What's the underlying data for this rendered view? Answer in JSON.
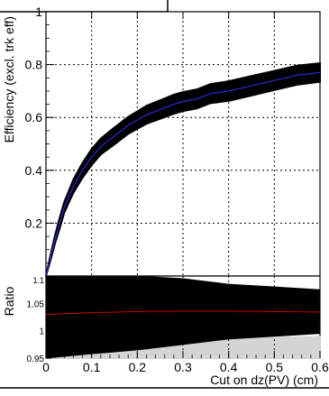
{
  "chart_data": [
    {
      "type": "line",
      "panel": "main",
      "title": "",
      "xlabel": "",
      "ylabel": "Efficiency (excl. trk eff)",
      "xlim": [
        0,
        0.6
      ],
      "ylim": [
        0,
        1.0
      ],
      "xticks": [
        "0",
        "0.1",
        "0.2",
        "0.3",
        "0.4",
        "0.5",
        "0.6"
      ],
      "yticks": [
        "0.2",
        "0.4",
        "0.6",
        "0.8",
        "1"
      ],
      "grid": true,
      "series": [
        {
          "color": "#2a2ad6",
          "band_color": "#000000",
          "x": [
            0,
            0.01,
            0.02,
            0.03,
            0.04,
            0.05,
            0.06,
            0.08,
            0.1,
            0.12,
            0.15,
            0.18,
            0.2,
            0.22,
            0.25,
            0.28,
            0.3,
            0.33,
            0.36,
            0.4,
            0.45,
            0.5,
            0.55,
            0.6
          ],
          "y": [
            0.0,
            0.07,
            0.14,
            0.2,
            0.26,
            0.3,
            0.34,
            0.4,
            0.45,
            0.49,
            0.53,
            0.57,
            0.59,
            0.61,
            0.63,
            0.65,
            0.66,
            0.67,
            0.69,
            0.7,
            0.72,
            0.74,
            0.76,
            0.77
          ],
          "band_half_width": [
            0.0,
            0.01,
            0.015,
            0.02,
            0.02,
            0.022,
            0.025,
            0.028,
            0.03,
            0.03,
            0.032,
            0.032,
            0.033,
            0.034,
            0.035,
            0.036,
            0.036,
            0.036,
            0.036,
            0.037,
            0.037,
            0.036,
            0.036,
            0.035
          ]
        }
      ]
    },
    {
      "type": "area",
      "panel": "ratio",
      "xlabel": "Cut on dz(PV) (cm)",
      "ylabel": "Ratio",
      "xlim": [
        0,
        0.6
      ],
      "ylim": [
        0.95,
        1.1
      ],
      "xticks": [
        "0",
        "0.1",
        "0.2",
        "0.3",
        "0.4",
        "0.5",
        "0.6"
      ],
      "yticks": [
        "0.95",
        "1",
        "1.05",
        "1.1"
      ],
      "grid": true,
      "black_band_x": [
        0,
        0.1,
        0.2,
        0.3,
        0.4,
        0.5,
        0.6
      ],
      "black_band_low": [
        0.95,
        0.958,
        0.965,
        0.975,
        0.985,
        0.99,
        0.995
      ],
      "black_band_high": [
        1.1,
        1.1,
        1.1,
        1.095,
        1.085,
        1.08,
        1.075
      ],
      "gray_band_x": [
        0,
        0.1,
        0.2,
        0.3,
        0.4,
        0.5,
        0.6
      ],
      "gray_band_low": [
        0.95,
        0.95,
        0.95,
        0.95,
        0.95,
        0.95,
        0.95
      ],
      "gray_band_high": [
        0.95,
        0.958,
        0.968,
        0.978,
        0.984,
        0.988,
        0.99
      ],
      "ratio_line_color": "#cc0000",
      "ratio_line_x": [
        0,
        0.1,
        0.2,
        0.3,
        0.4,
        0.5,
        0.6
      ],
      "ratio_line_y": [
        1.03,
        1.033,
        1.035,
        1.036,
        1.036,
        1.035,
        1.034
      ]
    }
  ]
}
